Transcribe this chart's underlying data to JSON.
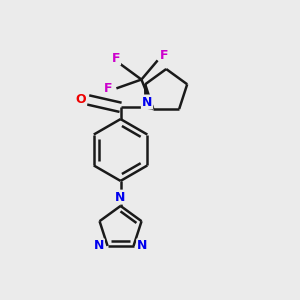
{
  "background_color": "#ebebeb",
  "bond_color": "#1a1a1a",
  "nitrogen_color": "#0000ee",
  "oxygen_color": "#ee0000",
  "fluorine_color": "#cc00cc",
  "line_width": 1.8,
  "figsize": [
    3.0,
    3.0
  ],
  "dpi": 100,
  "xlim": [
    0.0,
    1.0
  ],
  "ylim": [
    0.0,
    1.0
  ]
}
